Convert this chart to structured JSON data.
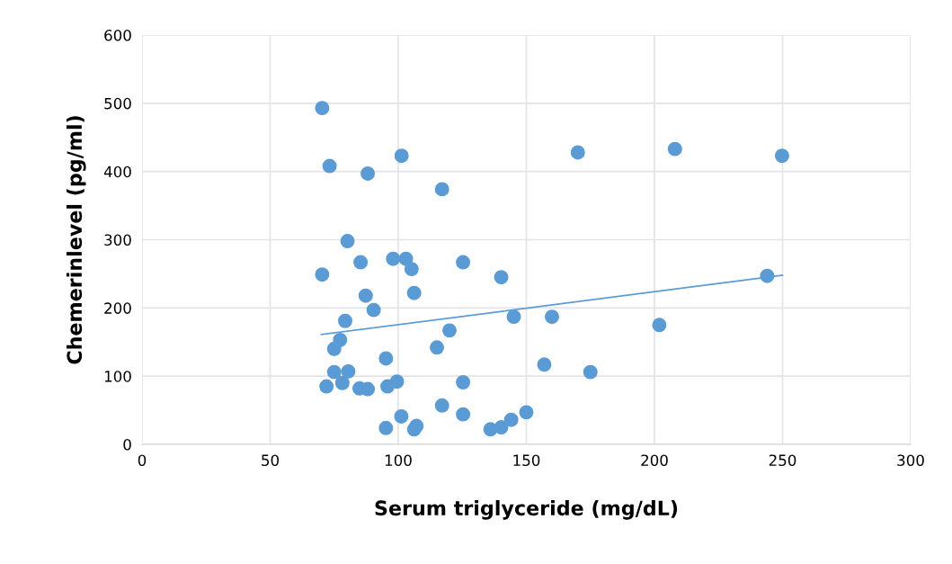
{
  "chart_data": {
    "type": "scatter",
    "xlabel": "Serum triglyceride (mg/dL)",
    "ylabel": "Chemerinlevel (pg/ml)",
    "series": [
      {
        "color": "#5b9bd5",
        "marker": "circle",
        "x": [
          70.3,
          73.2,
          88.1,
          101.3,
          117.1,
          170.1,
          208,
          249.8,
          80.2,
          70.3,
          85.3,
          98,
          103,
          105.2,
          125.3,
          140.2,
          87.3,
          106.2,
          90.4,
          79.3,
          145.1,
          160,
          244,
          201.9,
          77.3,
          75,
          120,
          115.1,
          95.2,
          157,
          175,
          75,
          80.5,
          72,
          78.2,
          84.9,
          88.1,
          95.8,
          99.5,
          125.3,
          117.1,
          125.3,
          101.2,
          95.2,
          107.1,
          106.2,
          136,
          140.2,
          144.1,
          150
        ],
        "values": [
          493,
          408,
          397,
          423,
          374,
          428,
          433,
          423,
          298,
          249,
          267,
          272,
          272,
          257,
          267,
          245,
          218,
          222,
          197,
          181,
          187,
          187,
          247,
          175,
          153,
          140,
          167,
          142,
          126,
          117,
          106,
          106,
          107,
          85,
          90,
          82,
          81,
          85,
          92,
          91,
          57,
          44,
          41,
          24,
          27,
          22,
          22,
          25,
          36,
          47
        ]
      },
      {
        "type": "line",
        "color": "#5b9bd5",
        "line_style": "solid",
        "x": [
          70,
          250
        ],
        "values": [
          161,
          248
        ]
      }
    ],
    "xlim": [
      0,
      300
    ],
    "xticks": [
      0,
      50,
      100,
      150,
      200,
      250,
      300
    ],
    "ylim": [
      0,
      600
    ],
    "yticks": [
      0,
      100,
      200,
      300,
      400,
      500,
      600
    ],
    "grid": true,
    "legend": false
  }
}
